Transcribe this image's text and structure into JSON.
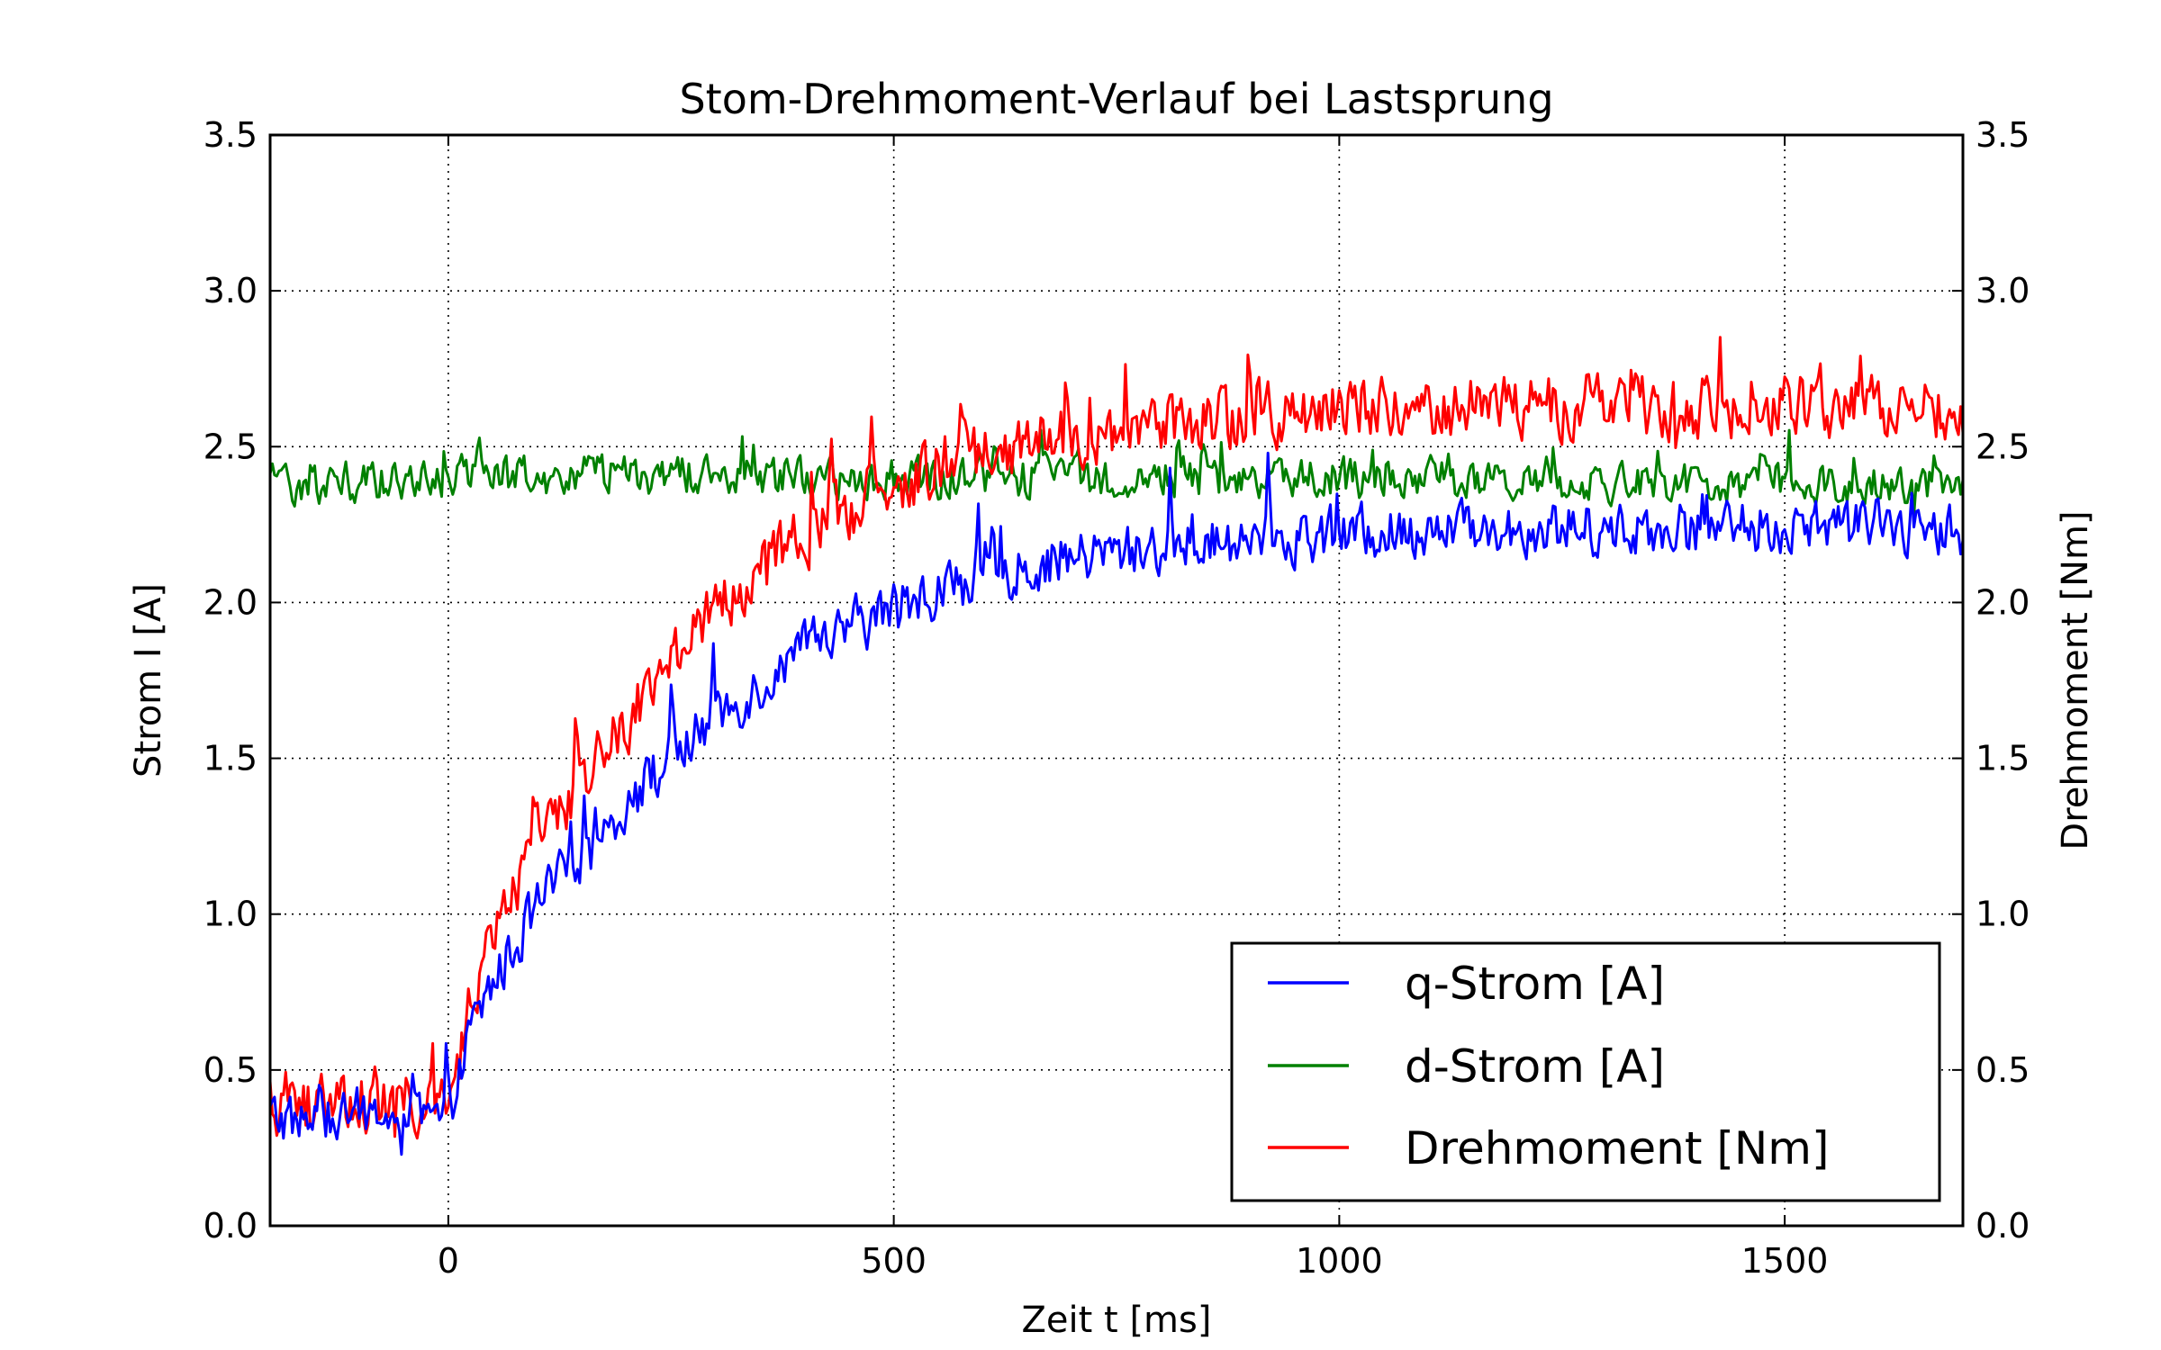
{
  "chart_data": {
    "type": "line",
    "title": "Stom-Drehmoment-Verlauf bei Lastsprung",
    "xlabel": "Zeit t [ms]",
    "ylabel": "Strom I [A]",
    "ylabel_right": "Drehmoment [Nm]",
    "xlim": [
      -200,
      1700
    ],
    "ylim": [
      0.0,
      3.5
    ],
    "ylim_right": [
      0.0,
      3.5
    ],
    "xticks": [
      0,
      500,
      1000,
      1500
    ],
    "xtick_labels": [
      "0",
      "500",
      "1000",
      "1500"
    ],
    "yticks": [
      0.0,
      0.5,
      1.0,
      1.5,
      2.0,
      2.5,
      3.0,
      3.5
    ],
    "ytick_labels": [
      "0.0",
      "0.5",
      "1.0",
      "1.5",
      "2.0",
      "2.5",
      "3.0",
      "3.5"
    ],
    "ytick_labels_right": [
      "0.0",
      "0.5",
      "1.0",
      "1.5",
      "2.0",
      "2.5",
      "3.0",
      "3.5"
    ],
    "grid": true,
    "legend_position": "bottom-right",
    "series": [
      {
        "name": "q-Strom [A]",
        "color": "#0000ff",
        "x": [
          -200,
          -150,
          -100,
          -50,
          0,
          25,
          50,
          100,
          150,
          200,
          250,
          300,
          350,
          400,
          450,
          500,
          550,
          600,
          700,
          800,
          900,
          1000,
          1100,
          1200,
          1300,
          1400,
          1500,
          1600,
          1700
        ],
        "y": [
          0.35,
          0.33,
          0.36,
          0.34,
          0.33,
          0.62,
          0.78,
          1.02,
          1.2,
          1.36,
          1.5,
          1.63,
          1.74,
          1.84,
          1.92,
          1.98,
          2.04,
          2.08,
          2.14,
          2.18,
          2.2,
          2.22,
          2.23,
          2.24,
          2.24,
          2.24,
          2.24,
          2.24,
          2.24
        ],
        "noise_amplitude": 0.12
      },
      {
        "name": "d-Strom [A]",
        "color": "#008000",
        "x": [
          -200,
          0,
          200,
          400,
          600,
          800,
          1000,
          1200,
          1400,
          1600,
          1700
        ],
        "y": [
          2.38,
          2.4,
          2.41,
          2.4,
          2.4,
          2.4,
          2.4,
          2.39,
          2.39,
          2.38,
          2.38
        ],
        "noise_amplitude": 0.09
      },
      {
        "name": "Drehmoment [Nm]",
        "color": "#ff0000",
        "x": [
          -200,
          -150,
          -100,
          -50,
          0,
          25,
          50,
          100,
          150,
          200,
          250,
          300,
          350,
          400,
          450,
          500,
          550,
          600,
          700,
          800,
          900,
          1000,
          1100,
          1200,
          1300,
          1400,
          1500,
          1600,
          1700
        ],
        "y": [
          0.4,
          0.38,
          0.41,
          0.39,
          0.38,
          0.72,
          0.92,
          1.22,
          1.44,
          1.62,
          1.8,
          1.96,
          2.1,
          2.22,
          2.3,
          2.38,
          2.44,
          2.48,
          2.54,
          2.58,
          2.6,
          2.62,
          2.63,
          2.63,
          2.63,
          2.63,
          2.63,
          2.63,
          2.63
        ],
        "noise_amplitude": 0.14
      }
    ]
  }
}
